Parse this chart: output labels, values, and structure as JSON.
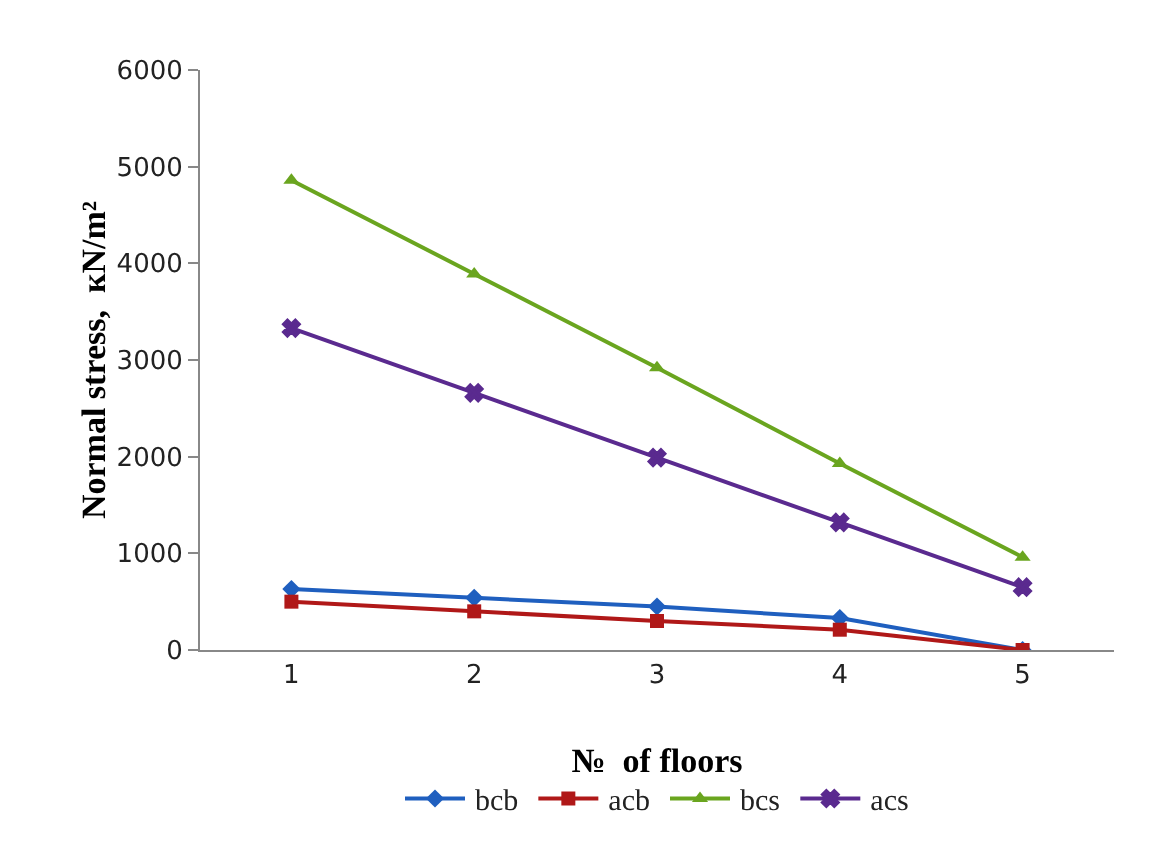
{
  "chart_data": {
    "type": "line",
    "categories": [
      "1",
      "2",
      "3",
      "4",
      "5"
    ],
    "xlabel": "№  of floors",
    "ylabel": "Normal stress,  кN/m²",
    "ylim": [
      0,
      6000
    ],
    "yticks": [
      0,
      1000,
      2000,
      3000,
      4000,
      5000,
      6000
    ],
    "grid": false,
    "legend": "bottom",
    "line_style": "solid",
    "series": [
      {
        "name": "bcb",
        "color": "#1f5fbf",
        "marker": "diamond",
        "values": [
          630,
          540,
          450,
          330,
          0
        ]
      },
      {
        "name": "acb",
        "color": "#b01818",
        "marker": "square",
        "values": [
          500,
          400,
          300,
          210,
          0
        ]
      },
      {
        "name": "bcs",
        "color": "#6aa51f",
        "marker": "triangle",
        "values": [
          4860,
          3890,
          2920,
          1930,
          960
        ]
      },
      {
        "name": "acs",
        "color": "#5a2a8f",
        "marker": "cross",
        "values": [
          3330,
          2660,
          1990,
          1320,
          650
        ]
      }
    ]
  }
}
